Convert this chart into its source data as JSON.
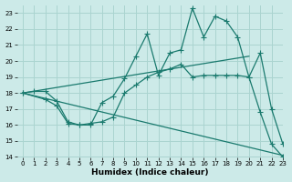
{
  "bg_color": "#cceae8",
  "grid_color": "#aad4d0",
  "line_color": "#1a7a6e",
  "xlabel": "Humidex (Indice chaleur)",
  "xlim": [
    -0.5,
    23
  ],
  "ylim": [
    14,
    23.5
  ],
  "yticks": [
    14,
    15,
    16,
    17,
    18,
    19,
    20,
    21,
    22,
    23
  ],
  "xticks": [
    0,
    1,
    2,
    3,
    4,
    5,
    6,
    7,
    8,
    9,
    10,
    11,
    12,
    13,
    14,
    15,
    16,
    17,
    18,
    19,
    20,
    21,
    22,
    23
  ],
  "line1_x": [
    0,
    1,
    2,
    3,
    4,
    5,
    6,
    7,
    8,
    9,
    10,
    11,
    12,
    13,
    14,
    15,
    16,
    17,
    18,
    19,
    20,
    21,
    22,
    23
  ],
  "line1_y": [
    18.0,
    18.1,
    18.1,
    17.5,
    16.2,
    16.0,
    16.0,
    17.4,
    17.8,
    18.9,
    20.3,
    21.7,
    19.1,
    20.5,
    20.7,
    23.3,
    21.5,
    22.8,
    22.5,
    21.5,
    19.0,
    20.5,
    17.0,
    14.8
  ],
  "line2_x": [
    0,
    2,
    3,
    4,
    5,
    6,
    7,
    8,
    9,
    10,
    11,
    12,
    13,
    14,
    15,
    16,
    17,
    18,
    19,
    20,
    21,
    22,
    23
  ],
  "line2_y": [
    18.0,
    17.6,
    17.2,
    16.1,
    16.0,
    16.1,
    16.2,
    16.5,
    18.0,
    18.5,
    19.0,
    19.3,
    19.5,
    19.8,
    19.0,
    19.1,
    19.1,
    19.1,
    19.1,
    19.0,
    16.8,
    14.8,
    14.0
  ],
  "line3_x": [
    0,
    20
  ],
  "line3_y": [
    18.0,
    20.3
  ],
  "line4_x": [
    0,
    23
  ],
  "line4_y": [
    18.0,
    14.1
  ]
}
